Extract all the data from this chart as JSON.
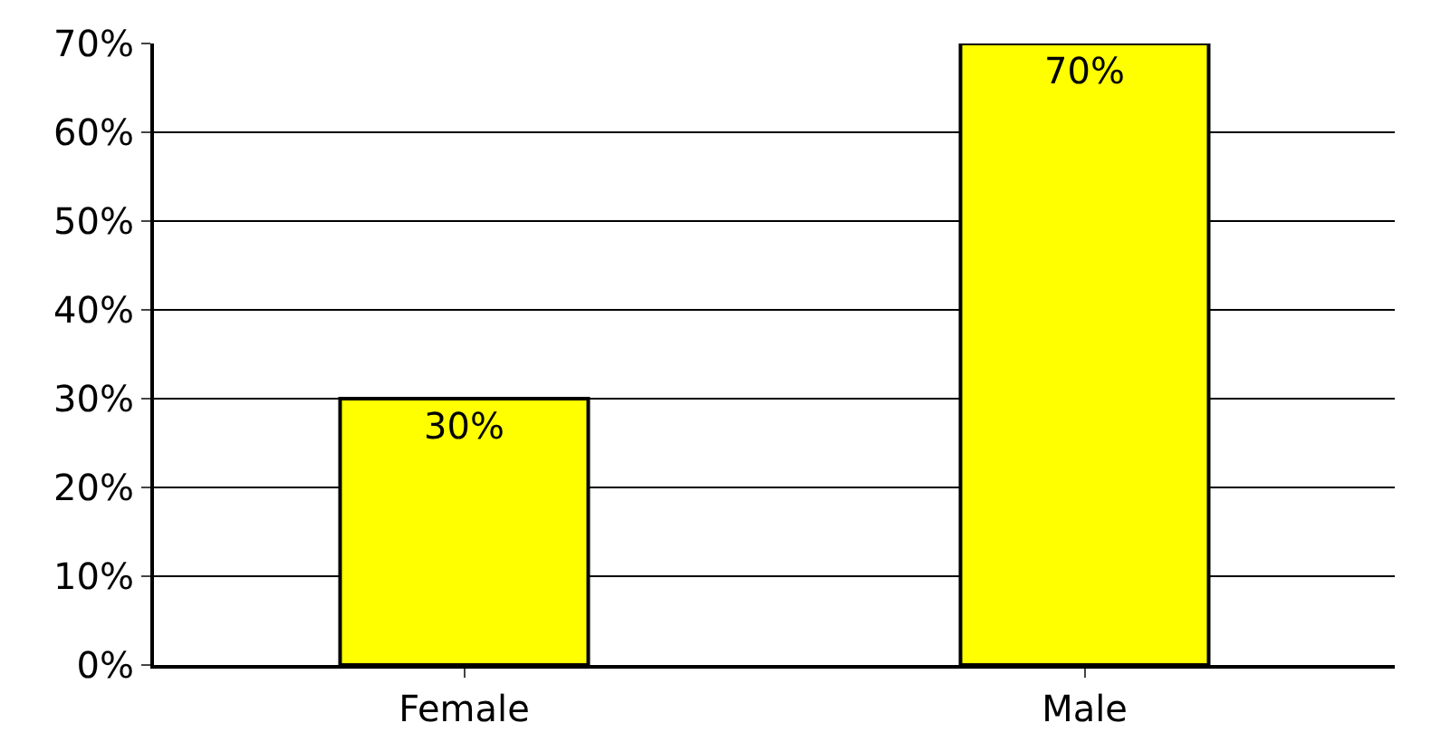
{
  "chart_data": {
    "type": "bar",
    "categories": [
      "Female",
      "Male"
    ],
    "values": [
      30,
      70
    ],
    "value_labels": [
      "30%",
      "70%"
    ],
    "color": "#ffff00",
    "ylim": [
      0,
      70
    ],
    "yticks": [
      {
        "value": 0,
        "label": "0%"
      },
      {
        "value": 10,
        "label": "10%"
      },
      {
        "value": 20,
        "label": "20%"
      },
      {
        "value": 30,
        "label": "30%"
      },
      {
        "value": 40,
        "label": "40%"
      },
      {
        "value": 50,
        "label": "50%"
      },
      {
        "value": 60,
        "label": "60%"
      },
      {
        "value": 70,
        "label": "70%"
      }
    ],
    "grid": "y",
    "legend": false
  }
}
